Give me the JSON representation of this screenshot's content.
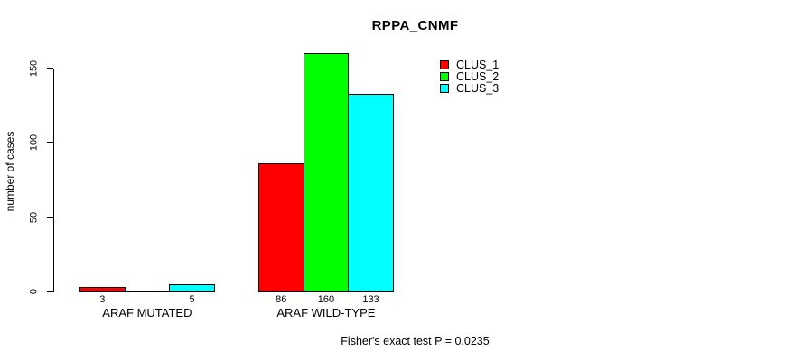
{
  "chart_data": {
    "type": "bar",
    "title": "RPPA_CNMF",
    "xlabel": "",
    "ylabel": "number of cases",
    "categories": [
      "ARAF MUTATED",
      "ARAF WILD-TYPE"
    ],
    "series": [
      {
        "name": "CLUS_1",
        "color": "#ff0000",
        "values": [
          3,
          86
        ]
      },
      {
        "name": "CLUS_2",
        "color": "#00ff00",
        "values": [
          0,
          160
        ]
      },
      {
        "name": "CLUS_3",
        "color": "#00ffff",
        "values": [
          5,
          133
        ]
      }
    ],
    "yticks": [
      0,
      50,
      100,
      150
    ],
    "ylim": [
      0,
      160
    ],
    "grid": false,
    "bar_borders": "#000000",
    "legend_position": "top-right",
    "value_labels_under_bars": true,
    "annotation": "Fisher's exact test P = 0.0235"
  }
}
